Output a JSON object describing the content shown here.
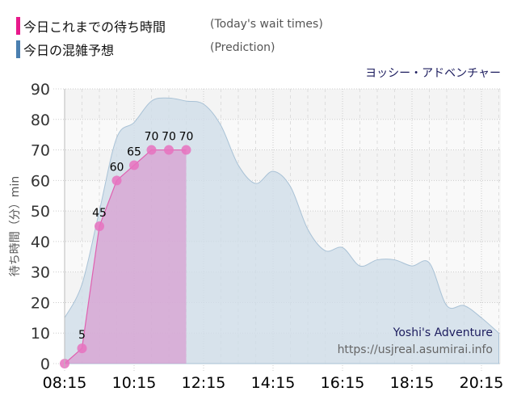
{
  "legend": [
    {
      "label": "今日これまでの待ち時間",
      "sub": "(Today's wait times)",
      "color": "#e8198b"
    },
    {
      "label": "今日の混雑予想",
      "sub": "(Prediction)",
      "color": "#4a7fb0"
    }
  ],
  "attraction_name": "ヨッシー・アドベンチャー",
  "watermark": {
    "brand": "Yoshi's Adventure",
    "url": "https://usjreal.asumirai.info"
  },
  "chart_data": {
    "type": "area",
    "title": "ヨッシー・アドベンチャー",
    "xlabel": "",
    "ylabel": "待ち時間（分）min",
    "ylim": [
      0,
      90
    ],
    "yticks": [
      0,
      10,
      20,
      30,
      40,
      50,
      60,
      70,
      80,
      90
    ],
    "xticks": [
      "08:15",
      "10:15",
      "12:15",
      "14:15",
      "16:15",
      "18:15",
      "20:15"
    ],
    "grid": true,
    "legend_position": "top-left",
    "series": [
      {
        "name": "今日これまでの待ち時間 (Today's wait times)",
        "color": "#e8198b",
        "x": [
          "08:15",
          "08:45",
          "09:15",
          "09:45",
          "10:15",
          "10:45",
          "11:15",
          "11:45"
        ],
        "values": [
          0,
          5,
          45,
          60,
          65,
          70,
          70,
          70
        ],
        "labels": [
          "",
          "5",
          "45",
          "60",
          "65",
          "70",
          "70",
          "70"
        ]
      },
      {
        "name": "今日の混雑予想 (Prediction)",
        "color": "#4a7fb0",
        "x": [
          "08:15",
          "08:45",
          "09:15",
          "09:45",
          "10:15",
          "10:45",
          "11:15",
          "11:45",
          "12:15",
          "12:45",
          "13:15",
          "13:45",
          "14:15",
          "14:45",
          "15:15",
          "15:45",
          "16:15",
          "16:45",
          "17:15",
          "17:45",
          "18:15",
          "18:45",
          "19:15",
          "19:45",
          "20:15",
          "20:45"
        ],
        "values": [
          15,
          26,
          50,
          74,
          79,
          86,
          87,
          86,
          85,
          78,
          65,
          59,
          63,
          58,
          44,
          37,
          38,
          32,
          34,
          34,
          32,
          33,
          19,
          19,
          15,
          10
        ]
      }
    ]
  }
}
